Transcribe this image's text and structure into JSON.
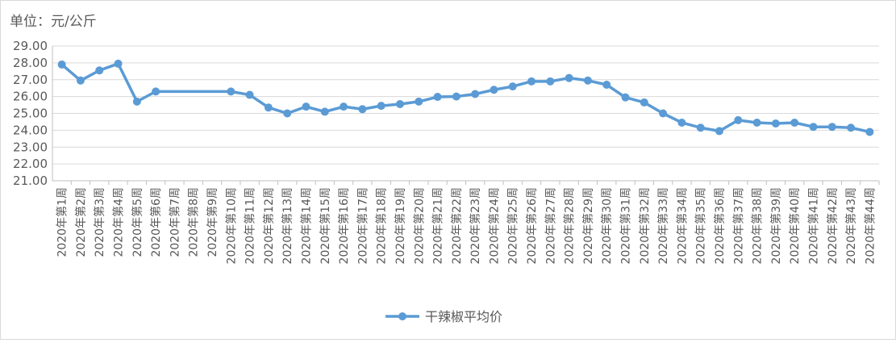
{
  "chart_data": {
    "type": "line",
    "y_axis_label": "单位：元/公斤",
    "categories": [
      "2020年第1周",
      "2020年第2周",
      "2020年第3周",
      "2020年第4周",
      "2020年第5周",
      "2020年第6周",
      "2020年第7周",
      "2020年第8周",
      "2020年第9周",
      "2020年第10周",
      "2020年第11周",
      "2020年第12周",
      "2020年第13周",
      "2020年第14周",
      "2020年第15周",
      "2020年第16周",
      "2020年第17周",
      "2020年第18周",
      "2020年第19周",
      "2020年第20周",
      "2020年第21周",
      "2020年第22周",
      "2020年第23周",
      "2020年第24周",
      "2020年第25周",
      "2020年第26周",
      "2020年第27周",
      "2020年第28周",
      "2020年第29周",
      "2020年第30周",
      "2020年第31周",
      "2020年第32周",
      "2020年第33周",
      "2020年第34周",
      "2020年第35周",
      "2020年第36周",
      "2020年第37周",
      "2020年第38周",
      "2020年第39周",
      "2020年第40周",
      "2020年第41周",
      "2020年第42周",
      "2020年第43周",
      "2020年第44周"
    ],
    "series": [
      {
        "name": "干辣椒平均价",
        "color": "#5b9bd5",
        "values": [
          27.9,
          26.95,
          27.55,
          27.95,
          25.7,
          26.3,
          null,
          null,
          null,
          26.3,
          26.1,
          25.35,
          25.0,
          25.4,
          25.1,
          25.4,
          25.25,
          25.45,
          25.55,
          25.7,
          25.98,
          26.0,
          26.15,
          26.4,
          26.6,
          26.9,
          26.9,
          27.1,
          26.95,
          26.7,
          25.95,
          25.65,
          25.0,
          24.45,
          24.15,
          23.95,
          24.6,
          24.45,
          24.4,
          24.45,
          24.2,
          24.2,
          24.15,
          23.9
        ]
      }
    ],
    "connect_gaps": true,
    "ylim": [
      21,
      29
    ],
    "yticks": [
      {
        "value": 21,
        "label": "21.00"
      },
      {
        "value": 22,
        "label": "22.00"
      },
      {
        "value": 23,
        "label": "23.00"
      },
      {
        "value": 24,
        "label": "24.00"
      },
      {
        "value": 25,
        "label": "25.00"
      },
      {
        "value": 26,
        "label": "26.00"
      },
      {
        "value": 27,
        "label": "27.00"
      },
      {
        "value": 28,
        "label": "28.00"
      },
      {
        "value": 29,
        "label": "29.00"
      }
    ],
    "grid": true,
    "legend": "bottom"
  }
}
